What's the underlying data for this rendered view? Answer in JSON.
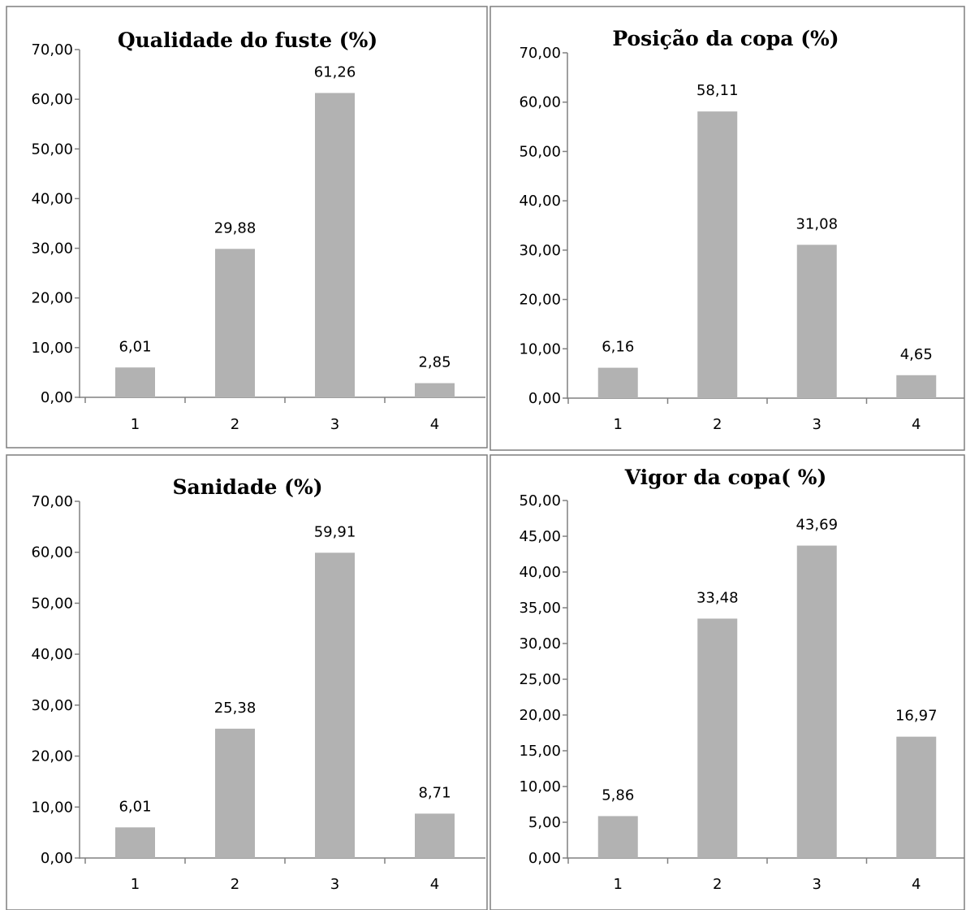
{
  "chart_data": [
    {
      "type": "bar",
      "title": "Qualidade do fuste (%)",
      "categories": [
        "1",
        "2",
        "3",
        "4"
      ],
      "values": [
        6.01,
        29.88,
        61.26,
        2.85
      ],
      "value_labels": [
        "6,01",
        "29,88",
        "61,26",
        "2,85"
      ],
      "ylim": [
        0,
        70
      ],
      "ytick_labels": [
        "0,00",
        "10,00",
        "20,00",
        "30,00",
        "40,00",
        "50,00",
        "60,00",
        "70,00"
      ],
      "xlabel": "",
      "ylabel": "",
      "grid": false,
      "bar_color": "#b2b2b2"
    },
    {
      "type": "bar",
      "title": "Posição da copa (%)",
      "categories": [
        "1",
        "2",
        "3",
        "4"
      ],
      "values": [
        6.16,
        58.11,
        31.08,
        4.65
      ],
      "value_labels": [
        "6,16",
        "58,11",
        "31,08",
        "4,65"
      ],
      "ylim": [
        0,
        70
      ],
      "ytick_labels": [
        "0,00",
        "10,00",
        "20,00",
        "30,00",
        "40,00",
        "50,00",
        "60,00",
        "70,00"
      ],
      "xlabel": "",
      "ylabel": "",
      "grid": false,
      "bar_color": "#b2b2b2"
    },
    {
      "type": "bar",
      "title": "Sanidade (%)",
      "categories": [
        "1",
        "2",
        "3",
        "4"
      ],
      "values": [
        6.01,
        25.38,
        59.91,
        8.71
      ],
      "value_labels": [
        "6,01",
        "25,38",
        "59,91",
        "8,71"
      ],
      "ylim": [
        0,
        70
      ],
      "ytick_labels": [
        "0,00",
        "10,00",
        "20,00",
        "30,00",
        "40,00",
        "50,00",
        "60,00",
        "70,00"
      ],
      "xlabel": "",
      "ylabel": "",
      "grid": false,
      "bar_color": "#b2b2b2"
    },
    {
      "type": "bar",
      "title": "Vigor da copa( %)",
      "categories": [
        "1",
        "2",
        "3",
        "4"
      ],
      "values": [
        5.86,
        33.48,
        43.69,
        16.97
      ],
      "value_labels": [
        "5,86",
        "33,48",
        "43,69",
        "16,97"
      ],
      "ylim": [
        0,
        50
      ],
      "ytick_labels": [
        "0,00",
        "5,00",
        "10,00",
        "15,00",
        "20,00",
        "25,00",
        "30,00",
        "35,00",
        "40,00",
        "45,00",
        "50,00"
      ],
      "xlabel": "",
      "ylabel": "",
      "grid": false,
      "bar_color": "#b2b2b2"
    }
  ]
}
